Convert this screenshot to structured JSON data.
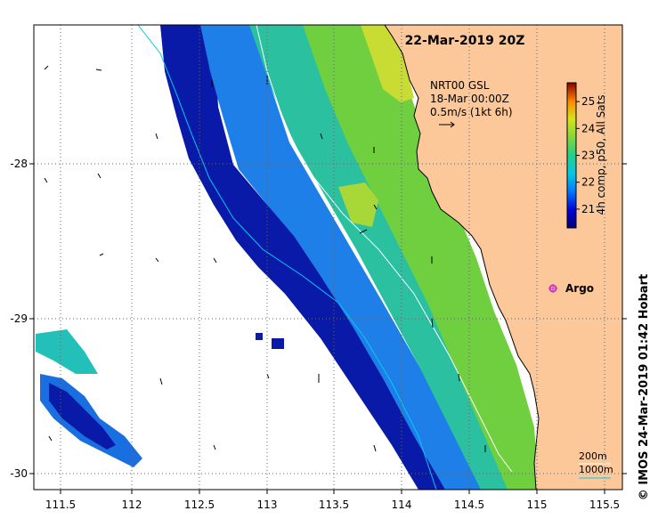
{
  "map": {
    "title": "22-Mar-2019 20Z",
    "x_ticks": [
      "111.5",
      "112",
      "112.5",
      "113",
      "113.5",
      "114",
      "114.5",
      "115",
      "115.5"
    ],
    "y_ticks": [
      "-28",
      "-29",
      "-30"
    ],
    "current_legend": {
      "line1": "NRT00 GSL",
      "line2": "18-Mar 00:00Z",
      "line3": "0.5m/s (1kt 6h)"
    },
    "colorbar": {
      "label": "4h comp, p50, All Sats",
      "ticks": [
        "25",
        "24",
        "23",
        "22",
        "21"
      ],
      "range": [
        20.3,
        25.7
      ]
    },
    "argo_label": "Argo",
    "depth_legend": {
      "line1": "200m",
      "line2": "1000m"
    },
    "credit": "© IMOS 24-Mar-2019 01:42 Hobart",
    "colors": {
      "land": "#FCC899",
      "argo": "#CC33CC",
      "isobath_200": "#FFFFFF",
      "isobath_1000": "#00CCEE",
      "grid": "#666666"
    }
  }
}
